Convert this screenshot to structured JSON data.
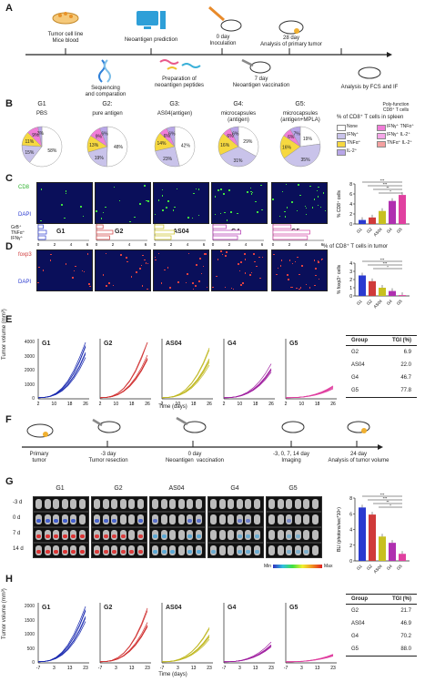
{
  "panelA": {
    "letter": "A",
    "steps": [
      {
        "label": "Tumor cell line\nMice blood"
      },
      {
        "label": "Neoantigen prediction"
      },
      {
        "label": "0 day\nInoculation"
      },
      {
        "label": "28 day\nAnalysis of primary tumor"
      },
      {
        "label": "Sequencing\nand comparation"
      },
      {
        "label": "Preparation of\nneoantigen peptides"
      },
      {
        "label": "7 day\nNeoantigen vaccination"
      },
      {
        "label": "Analysis by FCS and IF"
      }
    ]
  },
  "panelB": {
    "letter": "B",
    "groups": [
      {
        "name": "G1",
        "desc": "PBS",
        "slices": [
          "58%",
          "15%",
          "11%",
          "9%",
          "3%"
        ]
      },
      {
        "name": "G2:",
        "desc": "pure antigen",
        "slices": [
          "48%",
          "19%",
          "13%",
          "9%",
          "6%"
        ]
      },
      {
        "name": "G3:",
        "desc": "AS04(antigen)",
        "slices": [
          "42%",
          "23%",
          "14%",
          "6%",
          "6%"
        ]
      },
      {
        "name": "G4:",
        "desc": "microcapsules\n(antigen)",
        "slices": [
          "29%",
          "31%",
          "16%",
          "6%",
          "6%"
        ]
      },
      {
        "name": "G5:",
        "desc": "microcapsules\n(antigen+MPLA)",
        "slices": [
          "19%",
          "35%",
          "16%",
          "6%",
          "7%"
        ]
      }
    ],
    "legend_title": "% of CD8⁺ T cells in spleen",
    "legend_sub": "Poly-function\nCD8⁺ T cells",
    "legend": [
      "None",
      "IFNγ⁺",
      "TNFα⁺",
      "IL-2⁺",
      "IFNγ⁺ TNFα⁺",
      "IFNγ⁺ IL-2⁺",
      "TNFα⁺ IL-2⁺"
    ],
    "colors": [
      "#ffffff",
      "#c9c3ea",
      "#f6d840",
      "#b8a6e8",
      "#f07dd8",
      "#f5a6e8",
      "#f4a0a0"
    ]
  },
  "panelC": {
    "letter": "C",
    "stain1": "CD8",
    "stain2": "DAPI",
    "groups": [
      "G1",
      "G2",
      "AS04",
      "G4",
      "G5"
    ],
    "row_labels": [
      "GrB⁺",
      "TNFα⁺",
      "IFNγ⁺"
    ],
    "xticks": [
      "0",
      "2",
      "4",
      "6"
    ],
    "bar_title": "% of CD8⁺ T cells in spleen",
    "bar_ylabel": "% CD8⁺ cells",
    "bar_cats": [
      "G1",
      "G2",
      "AS04",
      "G4",
      "G5"
    ],
    "bar_values": [
      0.8,
      1.3,
      2.6,
      4.6,
      5.8
    ],
    "bar_yticks": [
      "0",
      "2",
      "4",
      "6",
      "8"
    ],
    "sig": [
      "***",
      "***",
      "**",
      "*"
    ]
  },
  "panelD": {
    "letter": "D",
    "stain1": "foxp3",
    "stain2": "DAPI",
    "bar_title": "% of CD8⁺ T cells in tumor",
    "bar_ylabel": "% foxp3⁺ cells",
    "bar_cats": [
      "G1",
      "G2",
      "AS04",
      "G4",
      "G5"
    ],
    "bar_values": [
      2.5,
      1.8,
      1.0,
      0.6,
      0.1
    ],
    "bar_yticks": [
      "0",
      "1",
      "2",
      "3",
      "4"
    ],
    "sig": [
      "***",
      "***",
      "*"
    ]
  },
  "panelE": {
    "letter": "E",
    "ylabel": "Tumor volume (mm³)",
    "xlabel": "Time (days)",
    "yticks": [
      "0",
      "1000",
      "2000",
      "3000",
      "4000"
    ],
    "xticks": [
      "2",
      "10",
      "18",
      "26"
    ],
    "groups": [
      "G1",
      "G2",
      "AS04",
      "G4",
      "G5"
    ],
    "table_head": [
      "Group",
      "TGI (%)"
    ],
    "table": [
      [
        "G2",
        "6.9"
      ],
      [
        "AS04",
        "22.0"
      ],
      [
        "G4",
        "46.7"
      ],
      [
        "G5",
        "77.8"
      ]
    ]
  },
  "panelF": {
    "letter": "F",
    "steps": [
      {
        "label": "Primary\ntumor"
      },
      {
        "label": "-3 day\nTumor resection"
      },
      {
        "label": "0 day\nNeoantigen  vaccination"
      },
      {
        "label": "-3, 0, 7, 14 day\nImaging"
      },
      {
        "label": "24 day\nAnalysis of tumor volume"
      }
    ]
  },
  "panelG": {
    "letter": "G",
    "groups": [
      "G1",
      "G2",
      "AS04",
      "G4",
      "G5"
    ],
    "days": [
      "-3 d",
      "0 d",
      "7 d",
      "14 d"
    ],
    "scale_min": "Min",
    "scale_max": "Max",
    "bar_ylabel": "BLI (photons/sec*10⁶)",
    "bar_cats": [
      "G1",
      "G2",
      "AS04",
      "G4",
      "G5"
    ],
    "bar_values": [
      6.8,
      5.9,
      3.1,
      2.3,
      0.9
    ],
    "bar_yticks": [
      "0",
      "2",
      "4",
      "6",
      "8"
    ],
    "sig": [
      "***",
      "***",
      "**",
      "*"
    ]
  },
  "panelH": {
    "letter": "H",
    "ylabel": "Tumor volume (mm³)",
    "xlabel": "Time (days)",
    "yticks": [
      "0",
      "500",
      "1000",
      "1500",
      "2000"
    ],
    "xticks": [
      "-7",
      "3",
      "13",
      "23"
    ],
    "groups": [
      "G1",
      "G2",
      "AS04",
      "G4",
      "G5"
    ],
    "table_head": [
      "Group",
      "TGI (%)"
    ],
    "table": [
      [
        "G2",
        "21.7"
      ],
      [
        "AS04",
        "46.9"
      ],
      [
        "G4",
        "70.2"
      ],
      [
        "G5",
        "88.0"
      ]
    ]
  }
}
